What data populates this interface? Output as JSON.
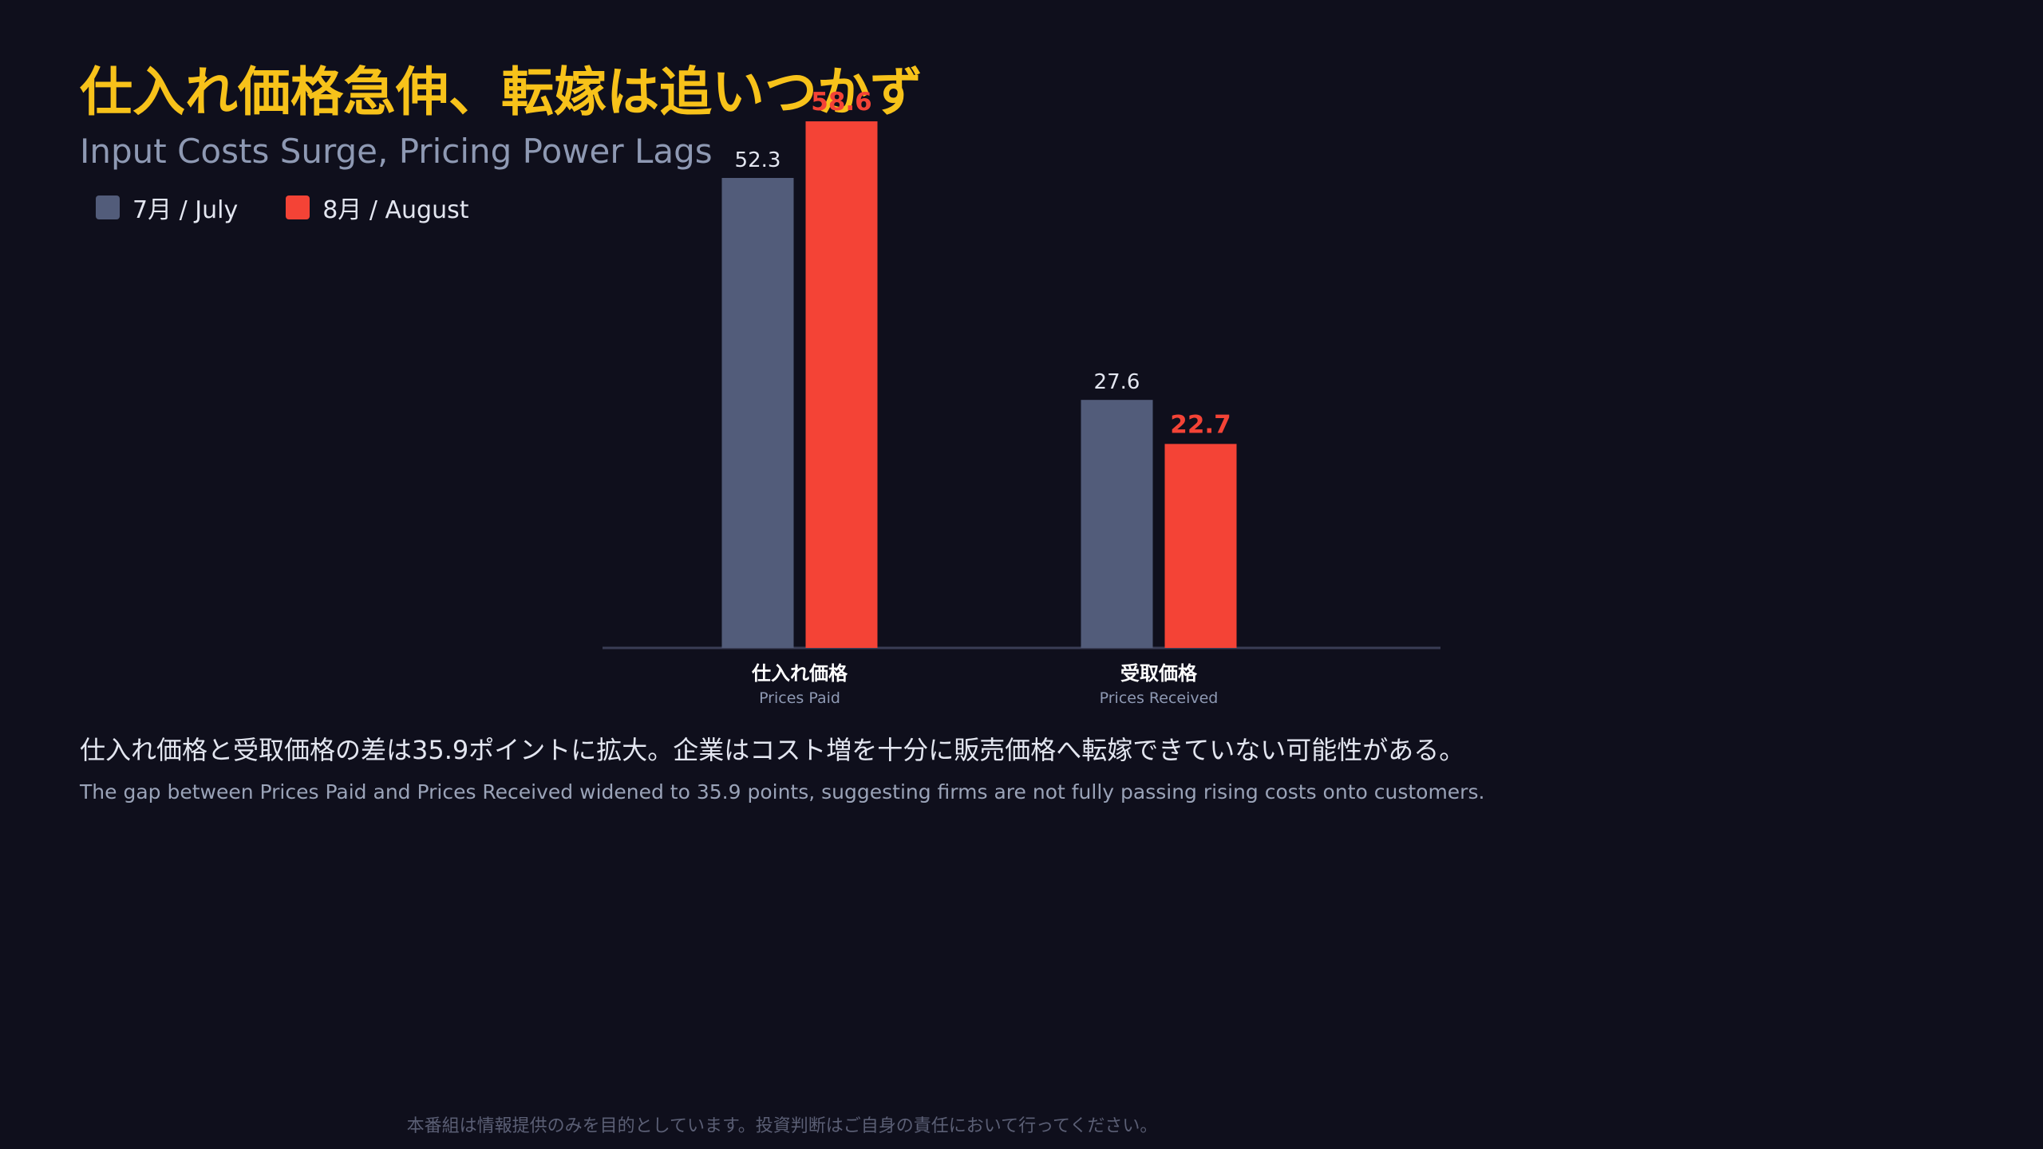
{
  "header": {
    "title": "仕入れ価格急伸、転嫁は追いつかず",
    "subtitle": "Input Costs Surge, Pricing Power Lags"
  },
  "legend": [
    {
      "label": "7月 / July",
      "color": "#525c7a"
    },
    {
      "label": "8月 / August",
      "color": "#f44336"
    }
  ],
  "chart_data": {
    "type": "bar",
    "categories": [
      "仕入れ価格",
      "受取価格"
    ],
    "category_sublabels": [
      "Prices Paid",
      "Prices Received"
    ],
    "series": [
      {
        "name": "7月 / July",
        "values": [
          52.3,
          27.6
        ],
        "color": "#525c7a",
        "label_color": "#e3e6f0"
      },
      {
        "name": "8月 / August",
        "values": [
          58.6,
          22.7
        ],
        "color": "#f44336",
        "label_color": "#f44336"
      }
    ],
    "data_labels": [
      [
        "52.3",
        "27.6"
      ],
      [
        "58.6",
        "22.7"
      ]
    ],
    "ylim": [
      0,
      65
    ],
    "grid": false
  },
  "notes": {
    "ja": "仕入れ価格と受取価格の差は35.9ポイントに拡大。企業はコスト増を十分に販売価格へ転嫁できていない可能性がある。",
    "en": "The gap between Prices Paid and Prices Received widened to 35.9 points, suggesting firms are not fully passing rising costs onto customers."
  },
  "footer": {
    "disclaimer": "本番組は情報提供のみを目的としています。投資判断はご自身の責任において行ってください。"
  }
}
